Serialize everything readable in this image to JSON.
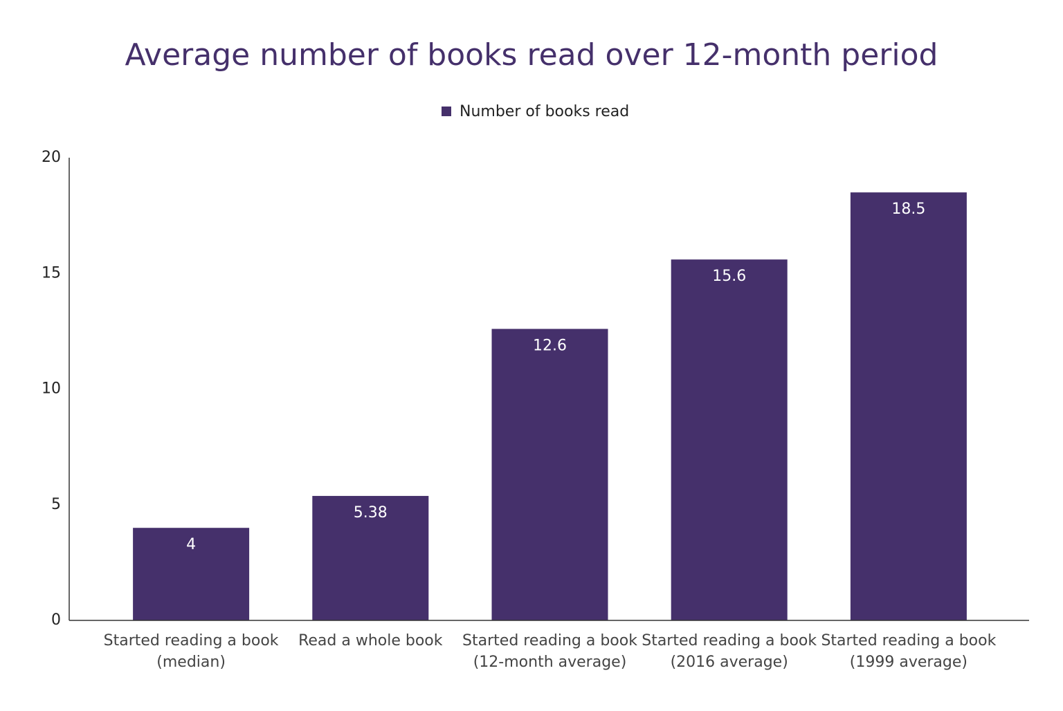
{
  "chart_data": {
    "type": "bar",
    "title": "Average number of books read over 12-month period",
    "categories": [
      [
        "Started reading a book",
        "(median)"
      ],
      [
        "Read a whole book"
      ],
      [
        "Started reading a book",
        "(12-month average)"
      ],
      [
        "Started reading a book",
        "(2016 average)"
      ],
      [
        "Started reading a book",
        "(1999 average)"
      ]
    ],
    "series": [
      {
        "name": "Number of books read",
        "color": "#45306b",
        "values": [
          4,
          5.38,
          12.6,
          15.6,
          18.5
        ]
      }
    ],
    "ylim": [
      0,
      20
    ],
    "yticks": [
      0,
      5,
      10,
      15,
      20
    ],
    "grid": false,
    "legend": "top"
  }
}
